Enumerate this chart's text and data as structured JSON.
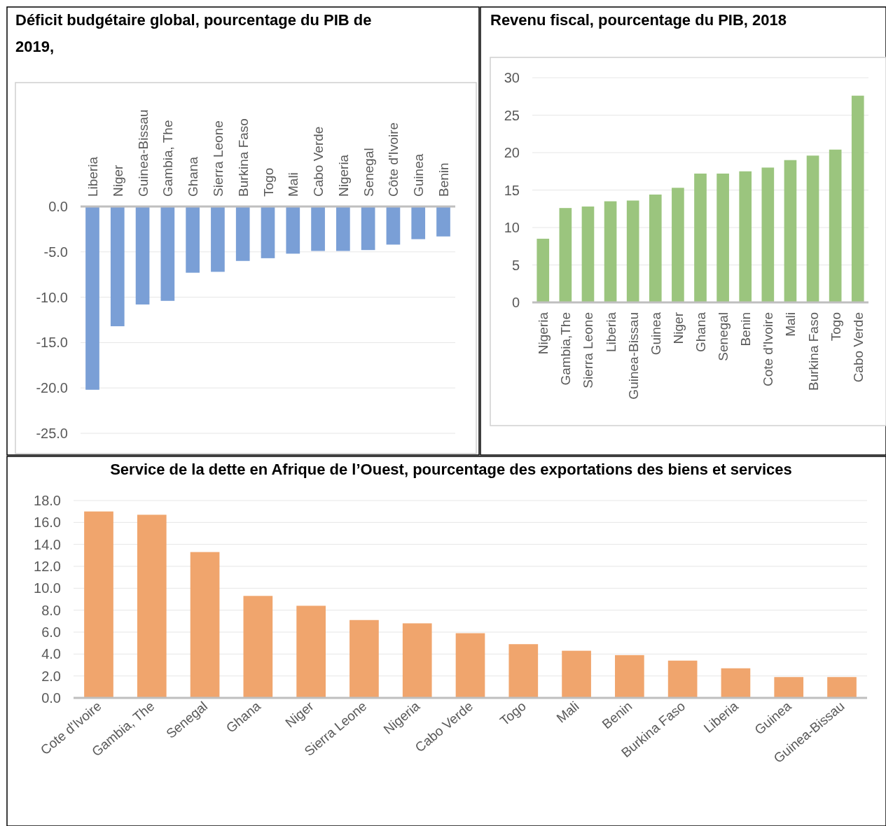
{
  "chart_data": [
    {
      "type": "bar",
      "title": "Déficit budgétaire global, pourcentage du PIB de 2019,",
      "categories": [
        "Liberia",
        "Niger",
        "Guinea-Bissau",
        "Gambia, The",
        "Ghana",
        "Sierra Leone",
        "Burkina Faso",
        "Togo",
        "Mali",
        "Cabo Verde",
        "Nigeria",
        "Senegal",
        "Côte d'Ivoire",
        "Guinea",
        "Benin"
      ],
      "series": [
        {
          "color": "#7a9fd6",
          "values": [
            -20.2,
            -13.2,
            -10.8,
            -10.4,
            -7.3,
            -7.2,
            -6.0,
            -5.7,
            -5.2,
            -4.9,
            -4.9,
            -4.8,
            -4.2,
            -3.6,
            -3.3
          ]
        }
      ],
      "ylim": [
        -25,
        0
      ],
      "yticks": [
        {
          "value": -25,
          "label": "-25.0"
        },
        {
          "value": -20,
          "label": "-20.0"
        },
        {
          "value": -15,
          "label": "-15.0"
        },
        {
          "value": -10,
          "label": "-10.0"
        },
        {
          "value": -5,
          "label": "-5.0"
        },
        {
          "value": 0,
          "label": "0.0"
        }
      ],
      "grid": "y"
    },
    {
      "type": "bar",
      "title": "Revenu fiscal, pourcentage du PIB, 2018",
      "categories": [
        "Nigeria",
        "Gambia,The",
        "Sierra Leone",
        "Liberia",
        "Guinea-Bissau",
        "Guinea",
        "Niger",
        "Ghana",
        "Senegal",
        "Benin",
        "Cote d'Ivoire",
        "Mali",
        "Burkina Faso",
        "Togo",
        "Cabo Verde"
      ],
      "series": [
        {
          "color": "#9bc57e",
          "values": [
            8.5,
            12.6,
            12.8,
            13.5,
            13.6,
            14.4,
            15.3,
            17.2,
            17.2,
            17.5,
            18.0,
            19.0,
            19.6,
            20.4,
            27.6
          ]
        }
      ],
      "ylim": [
        0,
        30
      ],
      "yticks": [
        0,
        5,
        10,
        15,
        20,
        25,
        30
      ],
      "grid": "y"
    },
    {
      "type": "bar",
      "title": "Service de la dette en Afrique de l’Ouest, pourcentage des exportations des biens et services",
      "categories": [
        "Cote d'Ivoire",
        "Gambia, The",
        "Senegal",
        "Ghana",
        "Niger",
        "Sierra Leone",
        "Nigeria",
        "Cabo Verde",
        "Togo",
        "Mali",
        "Benin",
        "Burkina Faso",
        "Liberia",
        "Guinea",
        "Guinea-Bissau"
      ],
      "series": [
        {
          "color": "#f0a56d",
          "values": [
            17.0,
            16.7,
            13.3,
            9.3,
            8.4,
            7.1,
            6.8,
            5.9,
            4.9,
            4.3,
            3.9,
            3.4,
            2.7,
            1.9,
            1.9
          ]
        }
      ],
      "ylim": [
        0,
        18
      ],
      "yticks": [
        {
          "value": 0,
          "label": "0.0"
        },
        {
          "value": 2,
          "label": "2.0"
        },
        {
          "value": 4,
          "label": "4.0"
        },
        {
          "value": 6,
          "label": "6.0"
        },
        {
          "value": 8,
          "label": "8.0"
        },
        {
          "value": 10,
          "label": "10.0"
        },
        {
          "value": 12,
          "label": "12.0"
        },
        {
          "value": 14,
          "label": "14.0"
        },
        {
          "value": 16,
          "label": "16.0"
        },
        {
          "value": 18,
          "label": "18.0"
        }
      ],
      "grid": "y"
    }
  ]
}
